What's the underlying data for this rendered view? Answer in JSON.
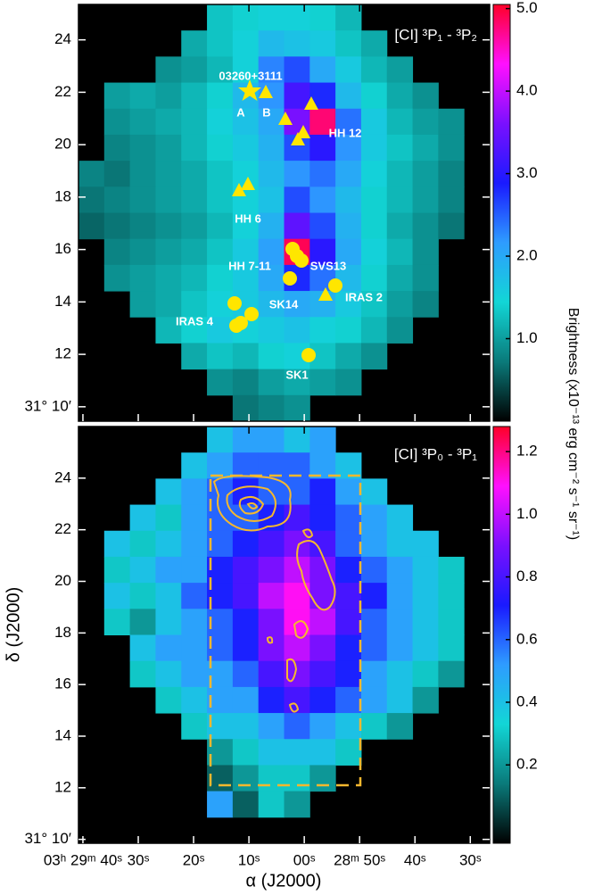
{
  "chart_data": [
    {
      "type": "heatmap",
      "title": "[CI] ³P₁ - ³P₂",
      "colorbar_label": "Brightness (x10⁻¹³ erg cm⁻² s⁻¹ sr⁻¹)",
      "colorscale": [
        "#000000",
        "#0a7a7a",
        "#12d6d6",
        "#2e9cff",
        "#1a1aff",
        "#7a10ff",
        "#ff10ff",
        "#ff0028"
      ],
      "clim": [
        0,
        5.05
      ],
      "cticks": [
        {
          "value": 1.0,
          "label": "1.0"
        },
        {
          "value": 2.0,
          "label": "2.0"
        },
        {
          "value": 3.0,
          "label": "3.0"
        },
        {
          "value": 4.0,
          "label": "4.0"
        },
        {
          "value": 5.0,
          "label": "5.0"
        }
      ],
      "xlim": [
        40.8,
        -33.5
      ],
      "ylim": [
        9.45,
        25.35
      ],
      "xticks": [
        40,
        30,
        20,
        10,
        0,
        -10,
        -20,
        -30
      ],
      "yticks": [
        {
          "value": 10,
          "label": "31° 10′"
        },
        12,
        14,
        16,
        18,
        20,
        22,
        24
      ],
      "annotations": [
        "03260+3111",
        "A",
        "B",
        "HH 12",
        "HH 6",
        "HH 7-11",
        "SVS13",
        "IRAS 2",
        "SK14",
        "IRAS 4",
        "SK1"
      ],
      "z": [
        [
          null,
          null,
          null,
          null,
          null,
          1.3,
          1.4,
          1.5,
          1.5,
          1.4,
          1.2,
          null,
          null,
          null,
          null,
          null
        ],
        [
          null,
          null,
          null,
          null,
          1.1,
          1.3,
          1.5,
          1.8,
          1.7,
          1.6,
          1.3,
          1.1,
          null,
          null,
          null,
          null
        ],
        [
          null,
          null,
          null,
          0.9,
          1.0,
          1.2,
          1.5,
          2.3,
          2.6,
          2.0,
          1.6,
          1.2,
          1.0,
          null,
          null,
          null
        ],
        [
          null,
          1.0,
          1.1,
          1.0,
          1.2,
          1.4,
          1.8,
          2.2,
          3.2,
          2.8,
          1.8,
          1.4,
          1.1,
          0.9,
          null,
          null
        ],
        [
          null,
          0.9,
          1.0,
          1.1,
          1.2,
          1.5,
          1.7,
          2.0,
          3.6,
          4.8,
          2.4,
          1.6,
          1.2,
          1.0,
          0.9,
          null
        ],
        [
          null,
          0.8,
          0.9,
          1.0,
          1.2,
          1.4,
          1.6,
          1.9,
          2.6,
          3.0,
          2.2,
          1.6,
          1.3,
          1.1,
          0.9,
          null
        ],
        [
          0.8,
          0.7,
          0.9,
          1.0,
          1.1,
          1.3,
          1.5,
          1.8,
          2.2,
          2.4,
          2.0,
          1.5,
          1.2,
          1.0,
          0.8,
          null
        ],
        [
          0.7,
          0.8,
          0.9,
          1.0,
          1.1,
          1.3,
          1.5,
          1.7,
          2.6,
          2.2,
          1.8,
          1.4,
          1.2,
          1.0,
          0.8,
          null
        ],
        [
          0.6,
          0.7,
          0.8,
          0.9,
          1.0,
          1.2,
          1.5,
          1.9,
          3.4,
          2.6,
          1.9,
          1.4,
          1.1,
          0.9,
          0.7,
          null
        ],
        [
          null,
          0.8,
          0.9,
          1.0,
          1.1,
          1.3,
          1.6,
          2.1,
          4.9,
          3.0,
          2.0,
          1.5,
          1.2,
          0.9,
          null,
          null
        ],
        [
          null,
          0.9,
          1.0,
          1.1,
          1.2,
          1.4,
          1.6,
          2.0,
          2.8,
          2.4,
          1.8,
          1.4,
          1.1,
          0.9,
          null,
          null
        ],
        [
          null,
          null,
          1.0,
          1.1,
          1.3,
          1.5,
          1.6,
          1.8,
          2.0,
          1.9,
          1.6,
          1.3,
          1.0,
          0.8,
          null,
          null
        ],
        [
          null,
          null,
          null,
          1.2,
          1.4,
          1.6,
          1.5,
          1.6,
          1.7,
          1.5,
          1.4,
          1.2,
          0.9,
          null,
          null,
          null
        ],
        [
          null,
          null,
          null,
          null,
          1.1,
          1.3,
          1.2,
          1.4,
          1.5,
          1.3,
          1.1,
          0.9,
          null,
          null,
          null,
          null
        ],
        [
          null,
          null,
          null,
          null,
          null,
          0.9,
          0.8,
          1.0,
          1.1,
          1.0,
          0.9,
          null,
          null,
          null,
          null,
          null
        ],
        [
          null,
          null,
          null,
          null,
          null,
          null,
          0.7,
          0.8,
          0.9,
          null,
          null,
          null,
          null,
          null,
          null,
          null
        ]
      ]
    },
    {
      "type": "heatmap",
      "title": "[CI] ³P₀ - ³P₁",
      "xlabel": "α (J2000)",
      "ylabel": "δ (J2000)",
      "colorscale": [
        "#000000",
        "#0a7a7a",
        "#12d6d6",
        "#2e9cff",
        "#1a1aff",
        "#7a10ff",
        "#ff10ff",
        "#ff0028"
      ],
      "clim": [
        -0.05,
        1.28
      ],
      "cticks": [
        0.2,
        0.4,
        0.6,
        0.8,
        {
          "value": 1.0,
          "label": "1.0"
        },
        1.2
      ],
      "xlim": [
        40.8,
        -33.5
      ],
      "ylim": [
        9.85,
        26.0
      ],
      "xticks": [
        {
          "value": 40,
          "label": "03ʰ 29ᵐ 40ˢ"
        },
        {
          "value": 30,
          "label": "30ˢ"
        },
        {
          "value": 20,
          "label": "20ˢ"
        },
        {
          "value": 10,
          "label": "10ˢ"
        },
        {
          "value": 0,
          "label": "00ˢ"
        },
        {
          "value": -10,
          "label": "28ᵐ 50ˢ"
        },
        {
          "value": -20,
          "label": "40ˢ"
        },
        {
          "value": -30,
          "label": "30ˢ"
        }
      ],
      "yticks": [
        {
          "value": 10,
          "label": "31° 10′"
        },
        12,
        14,
        16,
        18,
        20,
        22,
        24
      ],
      "z": [
        [
          null,
          null,
          null,
          null,
          null,
          0.4,
          0.5,
          0.5,
          0.4,
          0.5,
          null,
          null,
          null,
          null,
          null,
          null
        ],
        [
          null,
          null,
          null,
          null,
          0.4,
          0.5,
          0.6,
          0.6,
          0.6,
          0.5,
          0.4,
          null,
          null,
          null,
          null,
          null
        ],
        [
          null,
          null,
          null,
          0.4,
          0.5,
          0.6,
          0.7,
          0.6,
          0.6,
          0.7,
          0.5,
          0.4,
          null,
          null,
          null,
          null
        ],
        [
          null,
          null,
          0.4,
          0.3,
          0.5,
          0.6,
          0.6,
          0.7,
          0.8,
          0.7,
          0.6,
          0.5,
          0.4,
          null,
          null,
          null
        ],
        [
          null,
          0.4,
          0.3,
          0.4,
          0.5,
          0.6,
          0.7,
          0.8,
          0.9,
          0.8,
          0.6,
          0.5,
          0.4,
          0.4,
          null,
          null
        ],
        [
          null,
          0.3,
          0.4,
          0.5,
          0.5,
          0.7,
          0.8,
          0.9,
          1.0,
          0.9,
          0.7,
          0.6,
          0.5,
          0.4,
          0.3,
          null
        ],
        [
          null,
          0.4,
          0.3,
          0.4,
          0.6,
          0.7,
          0.8,
          1.0,
          1.1,
          0.9,
          0.8,
          0.7,
          0.5,
          0.4,
          0.3,
          null
        ],
        [
          null,
          0.3,
          0.2,
          0.4,
          0.5,
          0.6,
          0.7,
          0.9,
          1.1,
          1.0,
          0.8,
          0.6,
          0.5,
          0.4,
          0.3,
          null
        ],
        [
          null,
          null,
          0.4,
          0.5,
          0.5,
          0.6,
          0.7,
          0.9,
          1.0,
          0.9,
          0.7,
          0.6,
          0.5,
          0.4,
          0.3,
          null
        ],
        [
          null,
          null,
          0.3,
          0.4,
          0.5,
          0.5,
          0.6,
          0.8,
          0.9,
          0.8,
          0.7,
          0.5,
          0.4,
          0.3,
          0.2,
          null
        ],
        [
          null,
          null,
          null,
          0.3,
          0.4,
          0.5,
          0.5,
          0.7,
          0.8,
          0.7,
          0.6,
          0.5,
          0.4,
          0.2,
          null,
          null
        ],
        [
          null,
          null,
          null,
          null,
          0.3,
          0.4,
          0.4,
          0.5,
          0.6,
          0.5,
          0.4,
          0.3,
          0.2,
          null,
          null,
          null
        ],
        [
          null,
          null,
          null,
          null,
          null,
          0.2,
          0.3,
          0.4,
          0.4,
          0.4,
          0.3,
          null,
          null,
          null,
          null,
          null
        ],
        [
          null,
          null,
          null,
          null,
          null,
          0.1,
          0.2,
          0.3,
          0.3,
          0.2,
          null,
          null,
          null,
          null,
          null,
          null
        ],
        [
          null,
          null,
          null,
          null,
          null,
          0.5,
          0.1,
          0.3,
          0.2,
          null,
          null,
          null,
          null,
          null,
          null,
          null
        ],
        [
          null,
          null,
          null,
          null,
          null,
          null,
          null,
          null,
          null,
          null,
          null,
          null,
          null,
          null,
          null,
          null
        ]
      ]
    }
  ]
}
